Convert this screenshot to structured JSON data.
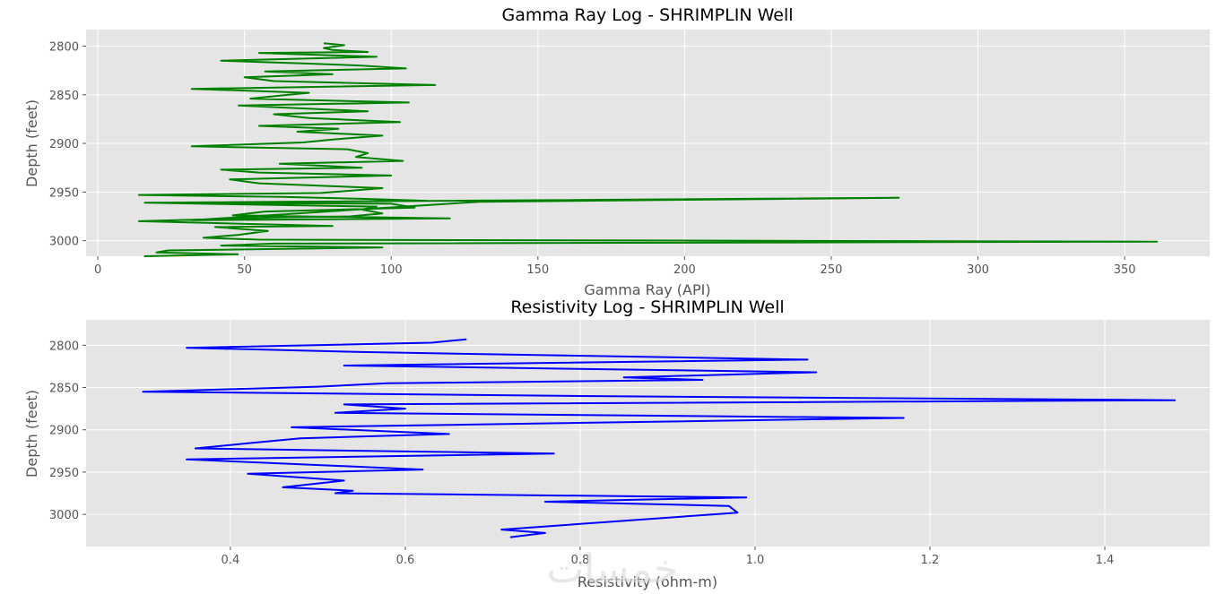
{
  "chart_data": [
    {
      "type": "line",
      "title": "Gamma Ray Log - SHRIMPLIN Well",
      "xlabel": "Gamma Ray (API)",
      "ylabel": "Depth (feet)",
      "xlim": [
        -4,
        379
      ],
      "ylim": [
        3016,
        2783
      ],
      "y_inverted": true,
      "grid": true,
      "xticks": [
        0,
        50,
        100,
        150,
        200,
        250,
        300,
        350
      ],
      "yticks": [
        2800,
        2850,
        2900,
        2950,
        3000
      ],
      "color": "#008000",
      "series": [
        {
          "x": [
            77,
            84,
            77,
            80,
            92,
            55,
            95,
            42,
            72,
            90,
            105,
            57,
            80,
            50,
            60,
            115,
            32,
            72,
            65,
            52,
            106,
            48,
            62,
            92,
            60,
            72,
            103,
            55,
            82,
            68,
            97,
            80,
            70,
            32,
            85,
            92,
            88,
            104,
            62,
            90,
            42,
            55,
            100,
            45,
            55,
            97,
            76,
            14,
            63,
            90,
            112,
            17,
            100,
            108,
            57,
            46,
            120,
            32,
            130,
            273,
            120,
            16,
            95,
            90,
            97,
            86,
            61,
            14,
            80,
            40,
            58,
            48,
            36,
            55,
            361,
            60,
            42,
            97,
            24,
            20,
            47,
            16,
            48
          ],
          "y": [
            2797,
            2799,
            2802,
            2804,
            2806,
            2807,
            2811,
            2815,
            2818,
            2820,
            2823,
            2826,
            2829,
            2832,
            2836,
            2840,
            2844,
            2848,
            2850,
            2854,
            2858,
            2861,
            2863,
            2867,
            2870,
            2874,
            2878,
            2882,
            2885,
            2888,
            2892,
            2896,
            2899,
            2903,
            2906,
            2910,
            2914,
            2918,
            2921,
            2925,
            2927,
            2930,
            2933,
            2937,
            2941,
            2946,
            2951,
            2953,
            2955,
            2957,
            2959,
            2961,
            2962,
            2966,
            2970,
            2974,
            2977,
            2979,
            2960,
            2956,
            2959,
            2961,
            2965,
            2968,
            2972,
            2975,
            2976,
            2980,
            2985,
            2986,
            2990,
            2994,
            2997,
            2999,
            3001,
            3003,
            3005,
            3007,
            3010,
            3012,
            3014,
            3016,
            3014
          ]
        }
      ]
    },
    {
      "type": "line",
      "title": "Resistivity Log - SHRIMPLIN Well",
      "xlabel": "Resistivity (ohm-m)",
      "ylabel": "Depth (feet)",
      "xlim": [
        0.235,
        1.52
      ],
      "ylim": [
        3038,
        2770
      ],
      "y_inverted": true,
      "grid": true,
      "xticks": [
        0.4,
        0.6,
        0.8,
        1.0,
        1.2,
        1.4
      ],
      "yticks": [
        2800,
        2850,
        2900,
        2950,
        3000
      ],
      "color": "#0000ff",
      "series": [
        {
          "x": [
            0.67,
            0.63,
            0.35,
            0.55,
            1.06,
            0.53,
            1.07,
            0.85,
            0.94,
            0.58,
            0.5,
            0.3,
            0.8,
            1.48,
            0.53,
            0.6,
            0.52,
            1.17,
            0.47,
            0.65,
            0.48,
            0.42,
            0.36,
            0.77,
            0.35,
            0.53,
            0.62,
            0.42,
            0.53,
            0.46,
            0.54,
            0.52,
            0.99,
            0.76,
            0.97,
            0.98,
            0.71,
            0.76,
            0.72
          ],
          "y": [
            2793,
            2797,
            2803,
            2808,
            2817,
            2824,
            2832,
            2838,
            2841,
            2845,
            2849,
            2855,
            2860,
            2865,
            2870,
            2875,
            2880,
            2886,
            2897,
            2905,
            2910,
            2916,
            2922,
            2928,
            2935,
            2943,
            2947,
            2952,
            2960,
            2968,
            2972,
            2975,
            2980,
            2985,
            2990,
            2998,
            3018,
            3022,
            3027
          ]
        }
      ]
    }
  ],
  "watermark": "خمسات"
}
